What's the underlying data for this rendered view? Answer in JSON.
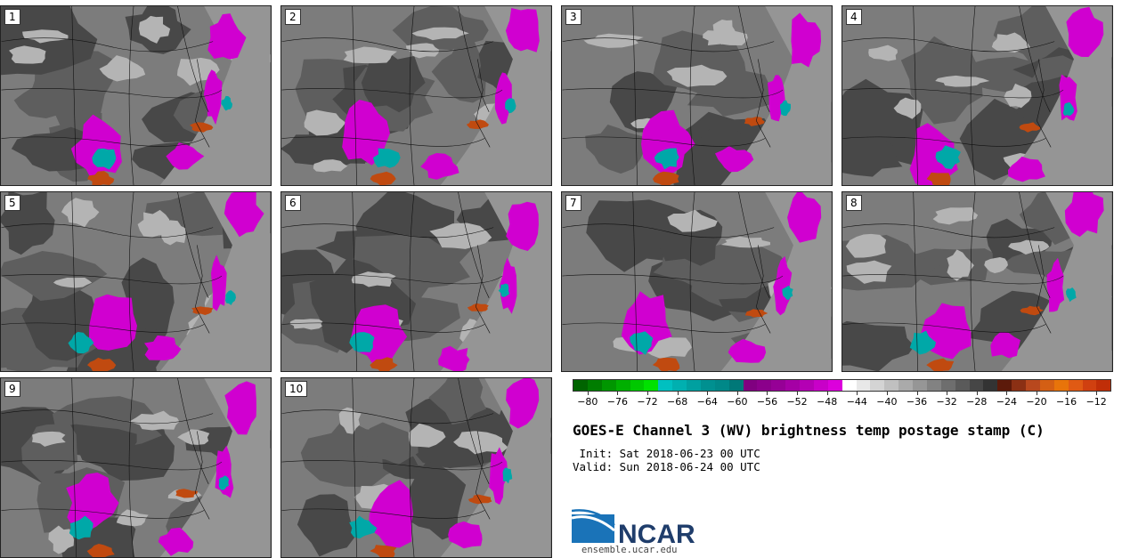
{
  "panels": [
    {
      "label": "1"
    },
    {
      "label": "2"
    },
    {
      "label": "3"
    },
    {
      "label": "4"
    },
    {
      "label": "5"
    },
    {
      "label": "6"
    },
    {
      "label": "7"
    },
    {
      "label": "8"
    },
    {
      "label": "9"
    },
    {
      "label": "10"
    }
  ],
  "colorbar": {
    "colors": [
      "#006400",
      "#007d00",
      "#009600",
      "#00af00",
      "#00c800",
      "#00e100",
      "#00c0c0",
      "#00b0b0",
      "#00a0a0",
      "#009090",
      "#008888",
      "#007878",
      "#800080",
      "#8b008b",
      "#960096",
      "#a500a5",
      "#b400b4",
      "#c800c8",
      "#dc00dc",
      "#ffffff",
      "#e8e8e8",
      "#d4d4d4",
      "#c0c0c0",
      "#aaaaaa",
      "#969696",
      "#828282",
      "#6e6e6e",
      "#5a5a5a",
      "#464646",
      "#333333",
      "#5c1a0a",
      "#8b3014",
      "#b8481e",
      "#d45f14",
      "#e8740a",
      "#e05a14",
      "#d04010",
      "#c02e08"
    ],
    "ticks": [
      "−80",
      "−76",
      "−72",
      "−68",
      "−64",
      "−60",
      "−56",
      "−52",
      "−48",
      "−44",
      "−40",
      "−36",
      "−32",
      "−28",
      "−24",
      "−20",
      "−16",
      "−12"
    ],
    "tick_values": [
      -80,
      -76,
      -72,
      -68,
      -64,
      -60,
      -56,
      -52,
      -48,
      -44,
      -40,
      -36,
      -32,
      -28,
      -24,
      -20,
      -16,
      -12
    ],
    "min": -82,
    "max": -10
  },
  "title": "GOES-E Channel 3 (WV) brightness temp postage stamp (C)",
  "init": " Init: Sat 2018-06-23 00 UTC",
  "valid": "Valid: Sun 2018-06-24 00 UTC",
  "logo_text": "NCAR",
  "site": "ensemble.ucar.edu",
  "colors": {
    "magenta": "#d000d0",
    "teal": "#00a8a8",
    "orange": "#c04a10",
    "grey_dark": "#3a3a3a",
    "grey_light": "#b4b4b4"
  }
}
